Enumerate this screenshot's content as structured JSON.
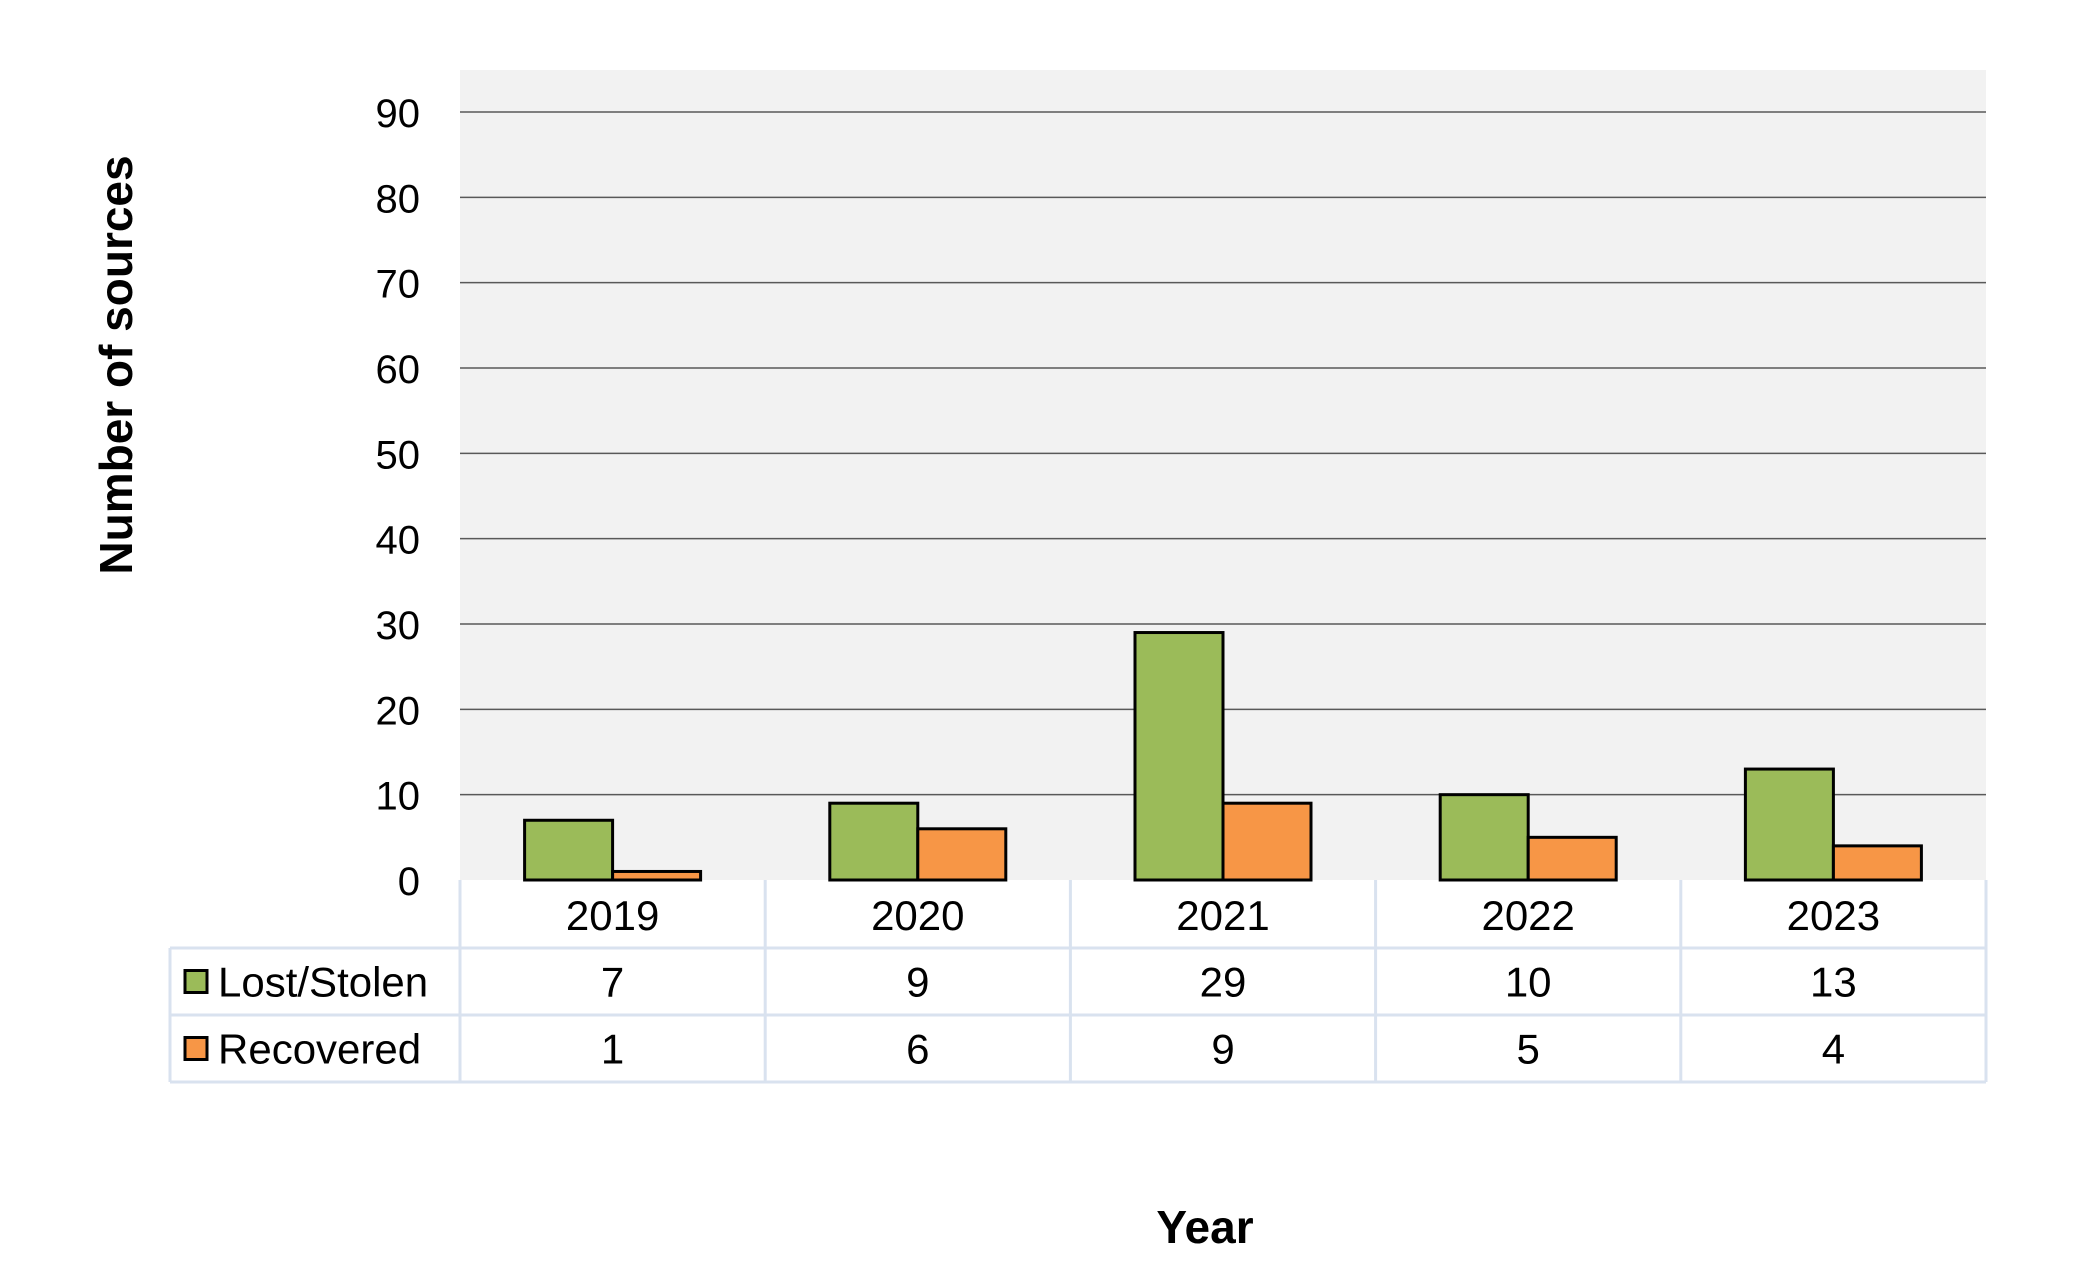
{
  "chart_data": {
    "type": "bar",
    "categories": [
      "2019",
      "2020",
      "2021",
      "2022",
      "2023"
    ],
    "series": [
      {
        "name": "Lost/Stolen",
        "values": [
          7,
          9,
          29,
          10,
          13
        ],
        "color": "#9bbb59"
      },
      {
        "name": "Recovered",
        "values": [
          1,
          6,
          9,
          5,
          4
        ],
        "color": "#f79646"
      }
    ],
    "xlabel": "Year",
    "ylabel": "Number of sources",
    "ylim": [
      0,
      90
    ],
    "yticks": [
      0,
      10,
      20,
      30,
      40,
      50,
      60,
      70,
      80,
      90
    ],
    "grid": true,
    "legend": "data-table-left",
    "data_table": true,
    "plot_background": "#f2f2f2",
    "bar_outline": "#000000",
    "table_border": "#d9e2ef"
  }
}
